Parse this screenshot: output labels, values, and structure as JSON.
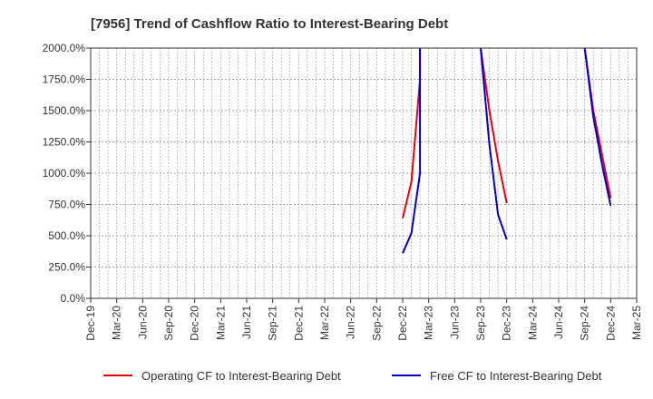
{
  "chart_data": {
    "type": "line",
    "title": "[7956]  Trend of Cashflow Ratio to Interest-Bearing Debt",
    "xlabel": "",
    "ylabel": "",
    "ylim": [
      0,
      2000
    ],
    "y_ticks": [
      "0.0%",
      "250.0%",
      "500.0%",
      "750.0%",
      "1000.0%",
      "1250.0%",
      "1500.0%",
      "1750.0%",
      "2000.0%"
    ],
    "x_ticks": [
      "Dec-19",
      "Mar-20",
      "Jun-20",
      "Sep-20",
      "Dec-20",
      "Mar-21",
      "Jun-21",
      "Sep-21",
      "Dec-21",
      "Mar-22",
      "Jun-22",
      "Sep-22",
      "Dec-22",
      "Mar-23",
      "Jun-23",
      "Sep-23",
      "Dec-23",
      "Mar-24",
      "Jun-24",
      "Sep-24",
      "Dec-24",
      "Mar-25"
    ],
    "grid": true,
    "legend_position": "bottom",
    "series": [
      {
        "name": "Operating CF to Interest-Bearing Debt",
        "color": "#e8000b",
        "points": [
          [
            "Dec-22",
            640
          ],
          [
            "Jan-23",
            930
          ],
          [
            "Feb-23",
            1750
          ],
          [
            "Feb-23",
            2000
          ],
          [
            "Sep-23",
            2000
          ],
          [
            "Oct-23",
            1500
          ],
          [
            "Nov-23",
            1100
          ],
          [
            "Dec-23",
            760
          ],
          [
            "Sep-24",
            2000
          ],
          [
            "Oct-24",
            1500
          ],
          [
            "Nov-24",
            1150
          ],
          [
            "Dec-24",
            800
          ]
        ]
      },
      {
        "name": "Free CF to Interest-Bearing Debt",
        "color": "#0000cc",
        "points": [
          [
            "Dec-22",
            360
          ],
          [
            "Jan-23",
            520
          ],
          [
            "Feb-23",
            1000
          ],
          [
            "Feb-23",
            2000
          ],
          [
            "Sep-23",
            2000
          ],
          [
            "Oct-23",
            1230
          ],
          [
            "Nov-23",
            670
          ],
          [
            "Dec-23",
            470
          ],
          [
            "Sep-24",
            2000
          ],
          [
            "Oct-24",
            1450
          ],
          [
            "Nov-24",
            1070
          ],
          [
            "Dec-24",
            740
          ]
        ]
      }
    ]
  }
}
